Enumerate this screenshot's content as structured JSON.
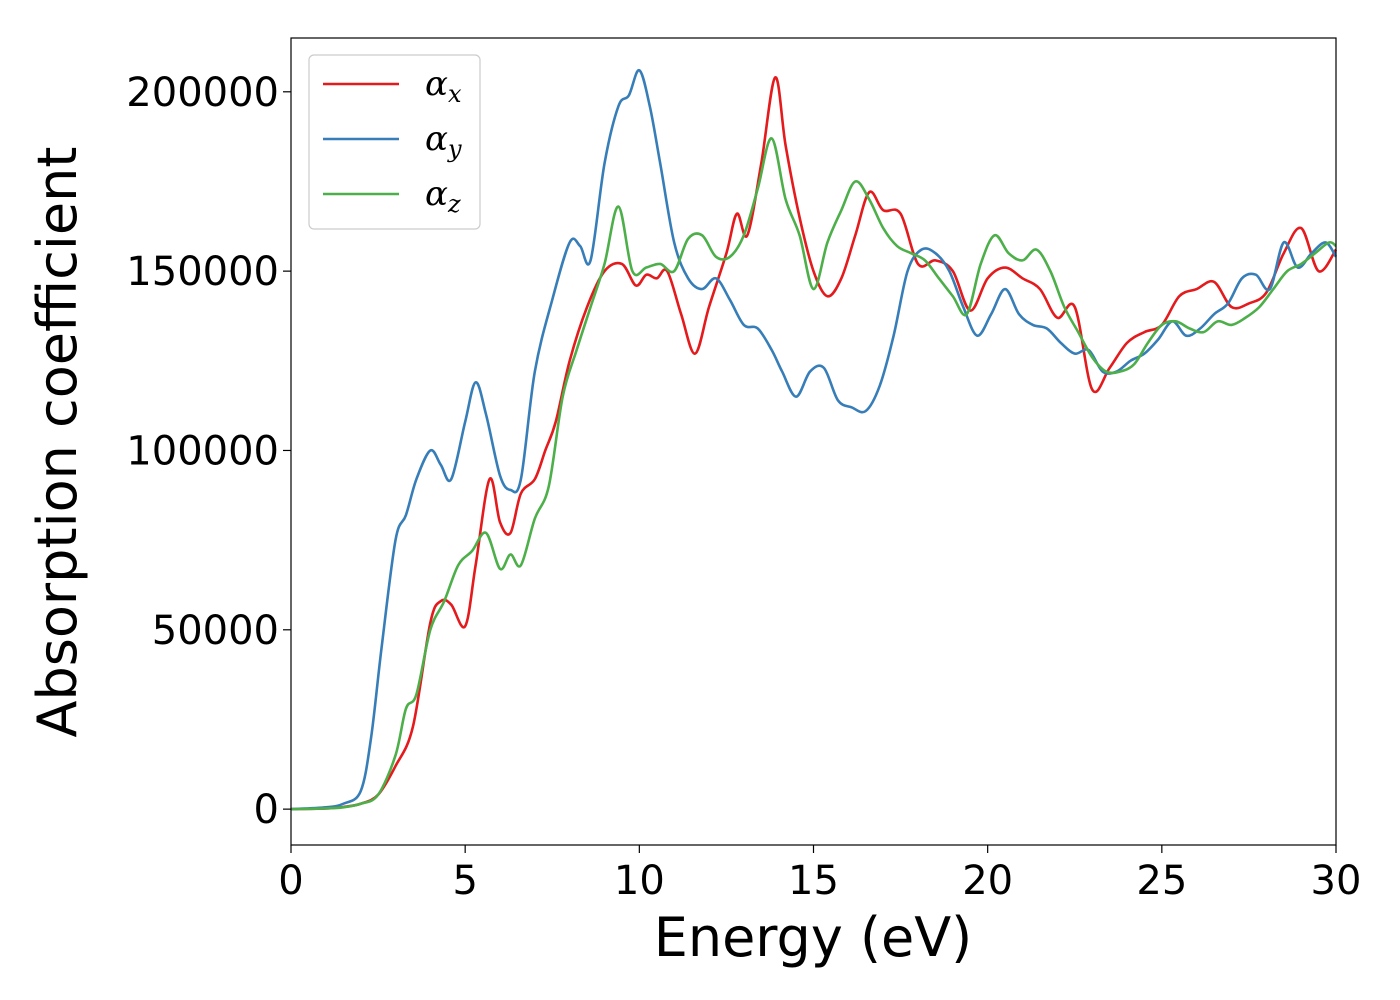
{
  "chart_data": {
    "type": "line",
    "xlabel": "Energy (eV)",
    "ylabel": "Absorption coefficient",
    "xlim": [
      0,
      30
    ],
    "ylim": [
      -10000,
      215000
    ],
    "xticks": [
      0,
      5,
      10,
      15,
      20,
      25,
      30
    ],
    "xtick_labels": [
      "0",
      "5",
      "10",
      "15",
      "20",
      "25",
      "30"
    ],
    "yticks": [
      0,
      50000,
      100000,
      150000,
      200000
    ],
    "ytick_labels": [
      "0",
      "50000",
      "100000",
      "150000",
      "200000"
    ],
    "grid": false,
    "legend_position": "top-left",
    "series": [
      {
        "name": "αx",
        "legend_base": "α",
        "legend_sub": "x",
        "color": "#e41a1c",
        "x": [
          0,
          1,
          1.5,
          2,
          2.5,
          3,
          3.5,
          4,
          4.3,
          4.6,
          5,
          5.3,
          5.7,
          6,
          6.3,
          6.6,
          7,
          7.3,
          7.6,
          8,
          8.5,
          9,
          9.5,
          9.9,
          10.2,
          10.5,
          10.8,
          11.2,
          11.6,
          12,
          12.5,
          12.8,
          13.1,
          13.5,
          13.9,
          14.2,
          14.6,
          15,
          15.4,
          15.8,
          16.2,
          16.6,
          17,
          17.5,
          18,
          18.5,
          19,
          19.5,
          20,
          20.5,
          21,
          21.5,
          22,
          22.5,
          23,
          23.5,
          24,
          24.5,
          25,
          25.5,
          26,
          26.5,
          27,
          27.5,
          28,
          28.5,
          29,
          29.5,
          30
        ],
        "y": [
          0,
          200,
          600,
          1500,
          4000,
          12000,
          23000,
          52000,
          58000,
          57000,
          51000,
          68000,
          92000,
          80000,
          77000,
          88000,
          92000,
          100000,
          108000,
          125000,
          140000,
          150000,
          152000,
          146000,
          149000,
          148000,
          150000,
          138000,
          127000,
          140000,
          155000,
          166000,
          160000,
          180000,
          204000,
          185000,
          165000,
          150000,
          143000,
          148000,
          160000,
          172000,
          167000,
          166000,
          152000,
          153000,
          150000,
          139000,
          148000,
          151000,
          148000,
          145000,
          137000,
          140000,
          117000,
          123000,
          130000,
          133000,
          135000,
          143000,
          145000,
          147000,
          140000,
          141000,
          144000,
          155000,
          162000,
          150000,
          156000
        ]
      },
      {
        "name": "αy",
        "legend_base": "α",
        "legend_sub": "y",
        "color": "#377eb8",
        "x": [
          0,
          1,
          1.5,
          2,
          2.3,
          2.6,
          3,
          3.3,
          3.6,
          4,
          4.3,
          4.6,
          5,
          5.3,
          5.6,
          6,
          6.3,
          6.6,
          7,
          7.5,
          8,
          8.3,
          8.6,
          9,
          9.4,
          9.7,
          10,
          10.3,
          10.6,
          11,
          11.4,
          11.8,
          12.2,
          12.6,
          13,
          13.4,
          13.8,
          14.1,
          14.5,
          14.9,
          15.3,
          15.7,
          16.1,
          16.5,
          16.9,
          17.3,
          17.7,
          18.1,
          18.5,
          18.9,
          19.3,
          19.7,
          20.1,
          20.5,
          20.9,
          21.3,
          21.7,
          22.1,
          22.5,
          22.9,
          23.3,
          23.7,
          24.1,
          24.5,
          24.9,
          25.3,
          25.7,
          26.1,
          26.5,
          26.9,
          27.3,
          27.7,
          28.1,
          28.5,
          28.9,
          29.3,
          29.7,
          30
        ],
        "y": [
          0,
          500,
          1500,
          5000,
          20000,
          45000,
          75000,
          82000,
          92000,
          100000,
          96000,
          92000,
          108000,
          119000,
          110000,
          93000,
          89000,
          92000,
          122000,
          142000,
          158000,
          157000,
          153000,
          180000,
          196000,
          199000,
          206000,
          196000,
          180000,
          158000,
          148000,
          145000,
          148000,
          142000,
          135000,
          134000,
          128000,
          122000,
          115000,
          122000,
          123000,
          114000,
          112000,
          111000,
          118000,
          132000,
          150000,
          156000,
          155000,
          150000,
          140000,
          132000,
          138000,
          145000,
          138000,
          135000,
          134000,
          130000,
          127000,
          128000,
          122000,
          122000,
          125000,
          127000,
          131000,
          136000,
          132000,
          134000,
          138000,
          141000,
          148000,
          149000,
          145000,
          158000,
          151000,
          155000,
          158000,
          154000
        ]
      },
      {
        "name": "αz",
        "legend_base": "α",
        "legend_sub": "z",
        "color": "#4daf4a",
        "x": [
          0,
          1,
          1.5,
          2,
          2.5,
          3,
          3.3,
          3.6,
          4,
          4.4,
          4.8,
          5.2,
          5.6,
          6,
          6.3,
          6.6,
          7,
          7.4,
          7.8,
          8.2,
          8.6,
          9,
          9.4,
          9.8,
          10.2,
          10.6,
          11,
          11.4,
          11.8,
          12.2,
          12.6,
          13,
          13.4,
          13.8,
          14.2,
          14.6,
          15,
          15.4,
          15.8,
          16.2,
          16.6,
          17,
          17.4,
          17.8,
          18.2,
          18.6,
          19,
          19.4,
          19.8,
          20.2,
          20.6,
          21,
          21.4,
          21.8,
          22.2,
          22.6,
          23,
          23.4,
          23.8,
          24.2,
          24.6,
          25,
          25.4,
          25.8,
          26.2,
          26.6,
          27,
          27.4,
          27.8,
          28.2,
          28.6,
          29,
          29.4,
          29.8,
          30
        ],
        "y": [
          0,
          200,
          500,
          1500,
          4000,
          15000,
          28000,
          32000,
          50000,
          58000,
          68000,
          72000,
          77000,
          67000,
          71000,
          68000,
          81000,
          90000,
          115000,
          128000,
          140000,
          152000,
          168000,
          150000,
          151000,
          152000,
          150000,
          159000,
          160000,
          154000,
          154000,
          160000,
          173000,
          187000,
          170000,
          160000,
          145000,
          158000,
          167000,
          175000,
          170000,
          162000,
          157000,
          155000,
          153000,
          148000,
          143000,
          138000,
          152000,
          160000,
          155000,
          153000,
          156000,
          150000,
          140000,
          133000,
          126000,
          122000,
          122000,
          124000,
          130000,
          135000,
          136000,
          134000,
          133000,
          136000,
          135000,
          137000,
          140000,
          145000,
          150000,
          152000,
          155000,
          158000,
          157000
        ]
      }
    ]
  }
}
